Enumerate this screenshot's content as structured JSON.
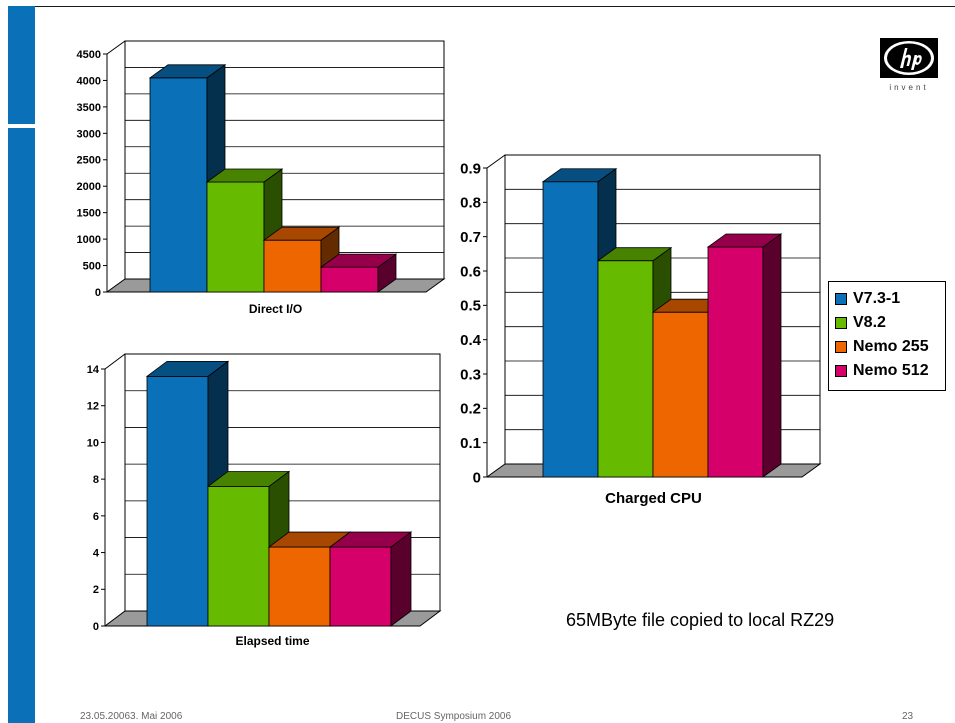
{
  "slide": {
    "logo_text": "invent",
    "note": "65MByte file copied to local RZ29",
    "footer": {
      "left": "23.05.20063. Mai 2006",
      "center": "DECUS Symposium 2006",
      "right": "23"
    }
  },
  "colors": {
    "accent_bar": "#0a71b8",
    "series": [
      "#0a71b8",
      "#66bb00",
      "#ee6600",
      "#d6006a"
    ]
  },
  "legend": {
    "placement": "right",
    "items": [
      {
        "label": "V7.3-1",
        "color": "#0a71b8"
      },
      {
        "label": "V8.2",
        "color": "#66bb00"
      },
      {
        "label": "Nemo 255",
        "color": "#ee6600"
      },
      {
        "label": "Nemo 512",
        "color": "#d6006a"
      }
    ]
  },
  "chart_data": [
    {
      "type": "bar",
      "title": "Direct I/O",
      "categories": [
        "V7.3-1",
        "V8.2",
        "Nemo 255",
        "Nemo 512"
      ],
      "values": [
        4050,
        2080,
        980,
        470
      ],
      "ylim": [
        0,
        4500
      ],
      "yticks": [
        "0",
        "500",
        "1000",
        "1500",
        "2000",
        "2500",
        "3000",
        "3500",
        "4000",
        "4500"
      ],
      "grid": true
    },
    {
      "type": "bar",
      "title": "Elapsed time",
      "categories": [
        "V7.3-1",
        "V8.2",
        "Nemo 255",
        "Nemo 512"
      ],
      "values": [
        13.6,
        7.6,
        4.3,
        4.3
      ],
      "ylim": [
        0,
        14
      ],
      "yticks": [
        "0",
        "2",
        "4",
        "6",
        "8",
        "10",
        "12",
        "14"
      ],
      "grid": true
    },
    {
      "type": "bar",
      "title": "Charged CPU",
      "categories": [
        "V7.3-1",
        "V8.2",
        "Nemo 255",
        "Nemo 512"
      ],
      "values": [
        0.86,
        0.63,
        0.48,
        0.67
      ],
      "ylim": [
        0,
        0.9
      ],
      "yticks": [
        "0",
        "0.1",
        "0.2",
        "0.3",
        "0.4",
        "0.5",
        "0.6",
        "0.7",
        "0.8",
        "0.9"
      ],
      "grid": true
    }
  ]
}
